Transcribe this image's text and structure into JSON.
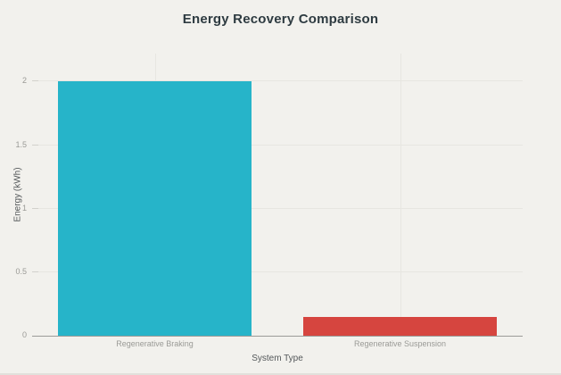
{
  "chart_data": {
    "type": "bar",
    "title": "Energy Recovery Comparison",
    "xlabel": "System Type",
    "ylabel": "Energy (kWh)",
    "categories": [
      "Regenerative Braking",
      "Regenerative Suspension"
    ],
    "values": [
      2,
      0.15
    ],
    "bar_colors": [
      "#26b4c9",
      "#d6453f"
    ],
    "yticks": [
      0,
      0.5,
      1,
      1.5,
      2
    ],
    "ylim": [
      0,
      2.22
    ],
    "grid": "on",
    "legend": "none",
    "background_color": "#f2f1ed",
    "gridline_color": "#e7e6e1",
    "axis_line_color": "#9b9b98",
    "tick_label_color": "#9a9a96",
    "axis_title_color": "#54585a",
    "title_color": "#2e3b41"
  }
}
